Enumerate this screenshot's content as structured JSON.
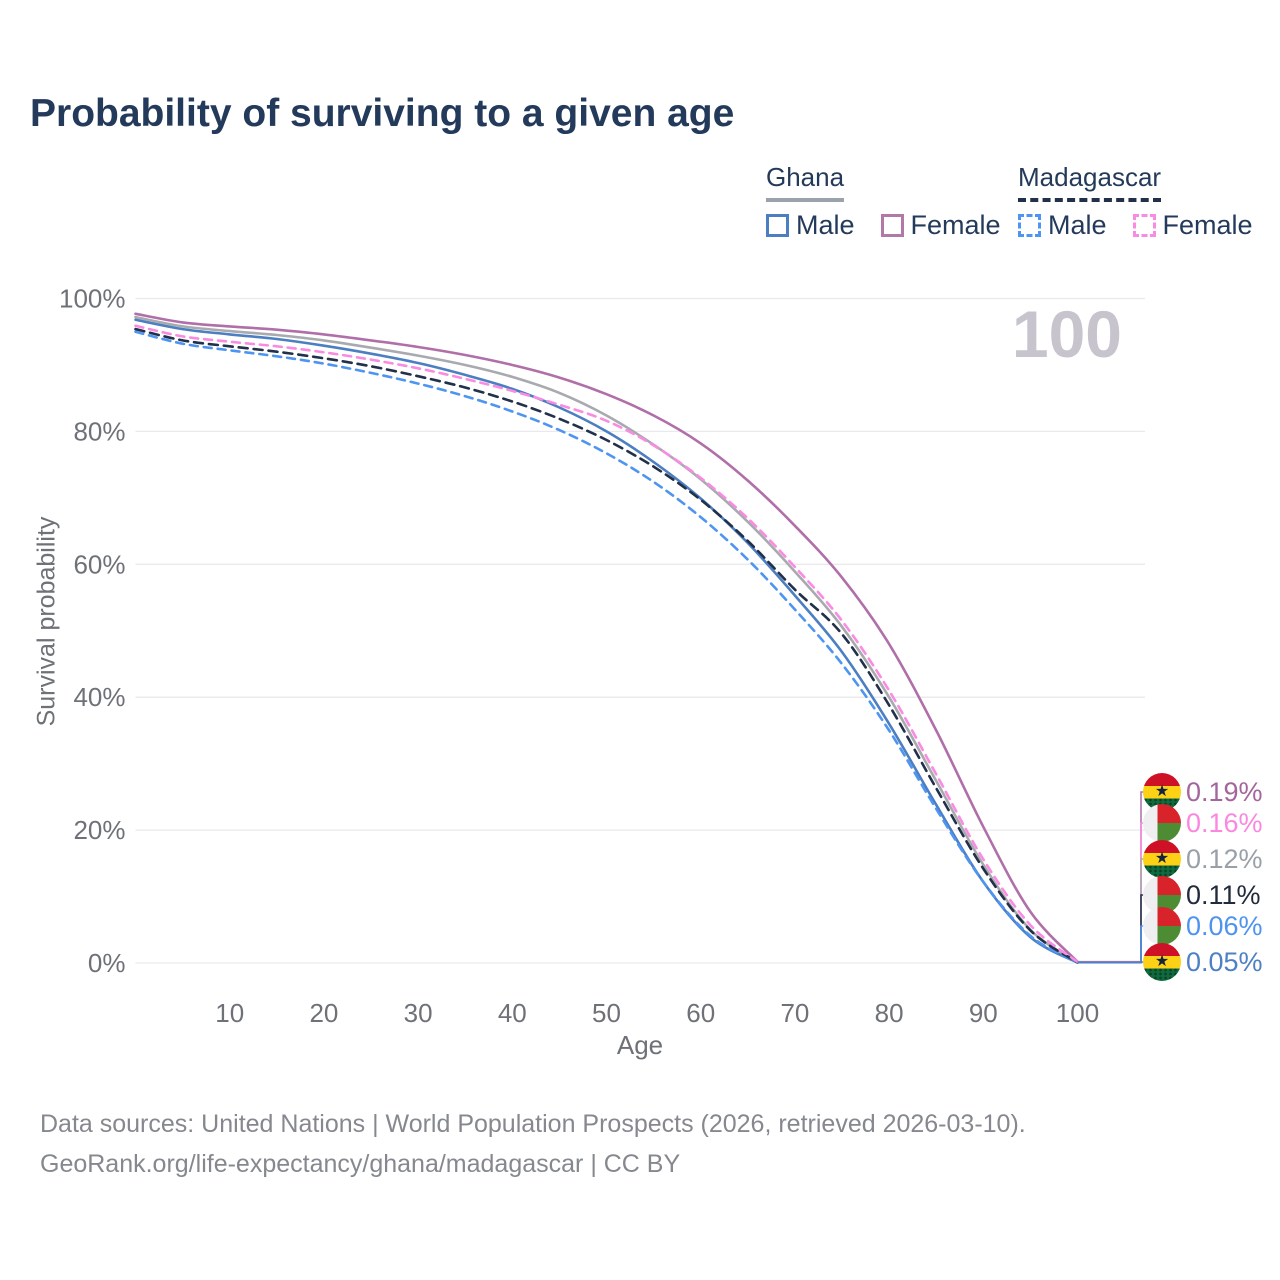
{
  "title": "Probability of surviving to a given age",
  "watermark": "100",
  "legend": {
    "ghana": {
      "label": "Ghana",
      "underline_color": "#9BA2AB",
      "male_label": "Male",
      "male_color": "#4C7EC2",
      "female_label": "Female",
      "female_color": "#B279A8"
    },
    "madagascar": {
      "label": "Madagascar",
      "underline_color": "#22304A",
      "male_label": "Male",
      "male_color": "#4E95F1",
      "female_label": "Female",
      "female_color": "#FA8BE2"
    }
  },
  "axes": {
    "y_title": "Survival probability",
    "x_title": "Age",
    "y_ticks": [
      "0%",
      "20%",
      "40%",
      "60%",
      "80%",
      "100%"
    ],
    "y_tick_values": [
      0,
      20,
      40,
      60,
      80,
      100
    ],
    "x_ticks": [
      10,
      20,
      30,
      40,
      50,
      60,
      70,
      80,
      90,
      100
    ]
  },
  "end_labels": [
    {
      "value": "0.19%",
      "flag": "ghana",
      "color": "#A4649C",
      "series": "ghana_female"
    },
    {
      "value": "0.16%",
      "flag": "madagascar",
      "color": "#FB87E0",
      "series": "madagascar_female"
    },
    {
      "value": "0.12%",
      "flag": "ghana",
      "color": "#9AA0A8",
      "series": "ghana_both"
    },
    {
      "value": "0.11%",
      "flag": "madagascar",
      "color": "#222B3C",
      "series": "madagascar_both"
    },
    {
      "value": "0.06%",
      "flag": "madagascar",
      "color": "#4E93EF",
      "series": "madagascar_male"
    },
    {
      "value": "0.05%",
      "flag": "ghana",
      "color": "#4D80C4",
      "series": "ghana_male"
    }
  ],
  "footer": {
    "line1": "Data sources: United Nations | World Population Prospects (2026, retrieved 2026-03-10).",
    "line2": "GeoRank.org/life-expectancy/ghana/madagascar | CC BY"
  },
  "chart_data": {
    "type": "line",
    "title": "Probability of surviving to a given age",
    "xlabel": "Age",
    "ylabel": "Survival probability",
    "xlim": [
      0,
      107
    ],
    "ylim": [
      0,
      100
    ],
    "grid": "horizontal",
    "legend_position": "top-right",
    "x": [
      0,
      5,
      10,
      15,
      20,
      25,
      30,
      35,
      40,
      45,
      50,
      55,
      60,
      65,
      70,
      75,
      80,
      85,
      90,
      95,
      100
    ],
    "series": [
      {
        "key": "ghana_female",
        "name": "Ghana Female",
        "color": "#B06FA8",
        "dash": null,
        "end_label": "0.19%",
        "values": [
          97.7,
          96.4,
          95.8,
          95.3,
          94.6,
          93.7,
          92.7,
          91.5,
          90.0,
          88.1,
          85.6,
          82.4,
          78.2,
          72.6,
          65.8,
          58.0,
          48.0,
          35.0,
          20.5,
          7.7,
          0.19
        ]
      },
      {
        "key": "ghana_both",
        "name": "Ghana Both sexes",
        "color": "#A8AAAF",
        "dash": null,
        "end_label": "0.12%",
        "values": [
          97.2,
          95.8,
          95.1,
          94.5,
          93.7,
          92.6,
          91.4,
          90.0,
          88.2,
          85.8,
          82.4,
          78.0,
          72.8,
          66.4,
          58.9,
          50.6,
          40.0,
          27.4,
          14.8,
          5.0,
          0.12
        ]
      },
      {
        "key": "ghana_male",
        "name": "Ghana Male",
        "color": "#4C7EC2",
        "dash": null,
        "end_label": "0.05%",
        "values": [
          96.8,
          95.4,
          94.6,
          93.9,
          92.9,
          91.7,
          90.3,
          88.5,
          86.4,
          83.6,
          80.0,
          75.4,
          69.9,
          63.2,
          55.3,
          46.8,
          36.0,
          23.8,
          12.2,
          3.9,
          0.05
        ]
      },
      {
        "key": "madagascar_female",
        "name": "Madagascar Female",
        "color": "#FA8BE2",
        "dash": "8 6",
        "end_label": "0.16%",
        "values": [
          95.9,
          94.3,
          93.5,
          92.8,
          91.9,
          90.8,
          89.5,
          87.9,
          86.1,
          84.0,
          81.6,
          77.9,
          73.0,
          66.9,
          59.6,
          51.5,
          41.0,
          28.4,
          15.6,
          5.7,
          0.16
        ]
      },
      {
        "key": "madagascar_both",
        "name": "Madagascar Both sexes",
        "color": "#22304A",
        "dash": "9 6",
        "end_label": "0.11%",
        "values": [
          95.4,
          93.7,
          92.8,
          92.0,
          91.0,
          89.8,
          88.3,
          86.6,
          84.5,
          81.9,
          78.7,
          74.7,
          69.7,
          63.5,
          56.2,
          49.5,
          38.8,
          26.3,
          14.2,
          4.9,
          0.11
        ]
      },
      {
        "key": "madagascar_male",
        "name": "Madagascar Male",
        "color": "#4E95F1",
        "dash": "8 6",
        "end_label": "0.06%",
        "values": [
          95.0,
          93.2,
          92.2,
          91.3,
          90.2,
          88.8,
          87.2,
          85.3,
          83.0,
          80.2,
          76.7,
          72.4,
          67.1,
          60.7,
          53.2,
          45.0,
          35.0,
          23.2,
          12.2,
          4.1,
          0.06
        ]
      }
    ]
  }
}
